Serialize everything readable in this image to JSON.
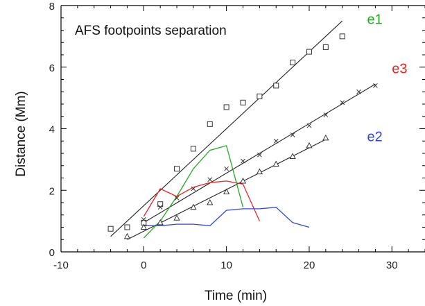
{
  "chart_data": {
    "type": "scatter",
    "title": "AFS footpoints separation",
    "xlabel": "Time (min)",
    "ylabel": "Distance (Mm)",
    "xlim": [
      -10,
      34
    ],
    "ylim": [
      0,
      8
    ],
    "xticks": [
      -10,
      0,
      10,
      20,
      30
    ],
    "yticks": [
      0,
      2,
      4,
      6,
      8
    ],
    "xtick_labels": [
      "-10",
      "0",
      "10",
      "20",
      "30"
    ],
    "ytick_labels": [
      "0",
      "2",
      "4",
      "6",
      "8"
    ],
    "grid": false,
    "colors": {
      "e1": "#22aa22",
      "e2": "#3344dd",
      "e3": "#ee2222",
      "axis": "#000000",
      "fit": "#222222"
    },
    "scatter_series": [
      {
        "name": "e1",
        "marker": "square",
        "x": [
          -4,
          -2,
          0,
          2,
          4,
          6,
          8,
          10,
          12,
          14,
          16,
          18,
          20,
          22,
          24
        ],
        "y": [
          0.75,
          0.8,
          0.95,
          1.55,
          2.7,
          3.35,
          4.15,
          4.7,
          4.85,
          5.05,
          5.4,
          6.15,
          6.5,
          6.65,
          7.0
        ]
      },
      {
        "name": "e3",
        "marker": "cross",
        "x": [
          0,
          2,
          4,
          6,
          8,
          10,
          12,
          14,
          16,
          18,
          20,
          22,
          24,
          26,
          28
        ],
        "y": [
          1.05,
          1.45,
          1.75,
          2.05,
          2.35,
          2.7,
          2.95,
          3.15,
          3.6,
          3.8,
          4.1,
          4.45,
          4.85,
          5.2,
          5.4
        ]
      },
      {
        "name": "e2",
        "marker": "triangle",
        "x": [
          -2,
          0,
          2,
          4,
          6,
          8,
          10,
          12,
          14,
          16,
          18,
          20,
          22
        ],
        "y": [
          0.5,
          0.8,
          0.95,
          1.1,
          1.45,
          1.6,
          1.95,
          2.3,
          2.6,
          2.85,
          3.1,
          3.45,
          3.7
        ]
      }
    ],
    "fit_lines": [
      {
        "name": "e1",
        "x": [
          -4,
          24
        ],
        "y": [
          0.5,
          7.5
        ]
      },
      {
        "name": "e3",
        "x": [
          0,
          28
        ],
        "y": [
          0.95,
          5.45
        ]
      },
      {
        "name": "e2",
        "x": [
          -2,
          22
        ],
        "y": [
          0.4,
          3.65
        ]
      }
    ],
    "line_series": [
      {
        "name": "e1",
        "x": [
          0,
          2,
          4,
          6,
          8,
          10,
          12
        ],
        "y": [
          0.45,
          1.0,
          1.8,
          2.7,
          3.3,
          3.45,
          1.45
        ]
      },
      {
        "name": "e3",
        "x": [
          0,
          2,
          4,
          6,
          8,
          10,
          12,
          14
        ],
        "y": [
          1.15,
          2.05,
          1.8,
          2.1,
          2.25,
          2.3,
          2.2,
          1.0
        ]
      },
      {
        "name": "e2",
        "x": [
          0,
          2,
          4,
          6,
          8,
          10,
          12,
          14,
          16,
          18,
          20
        ],
        "y": [
          0.85,
          0.85,
          0.9,
          0.9,
          0.85,
          1.35,
          1.4,
          1.4,
          1.45,
          0.95,
          0.8
        ]
      }
    ],
    "series_labels": [
      {
        "name": "e1",
        "x": 27,
        "y": 7.4,
        "color": "#22aa22"
      },
      {
        "name": "e3",
        "x": 30,
        "y": 5.8,
        "color": "#ee2222"
      },
      {
        "name": "e2",
        "x": 27,
        "y": 3.6,
        "color": "#3344dd"
      }
    ]
  }
}
